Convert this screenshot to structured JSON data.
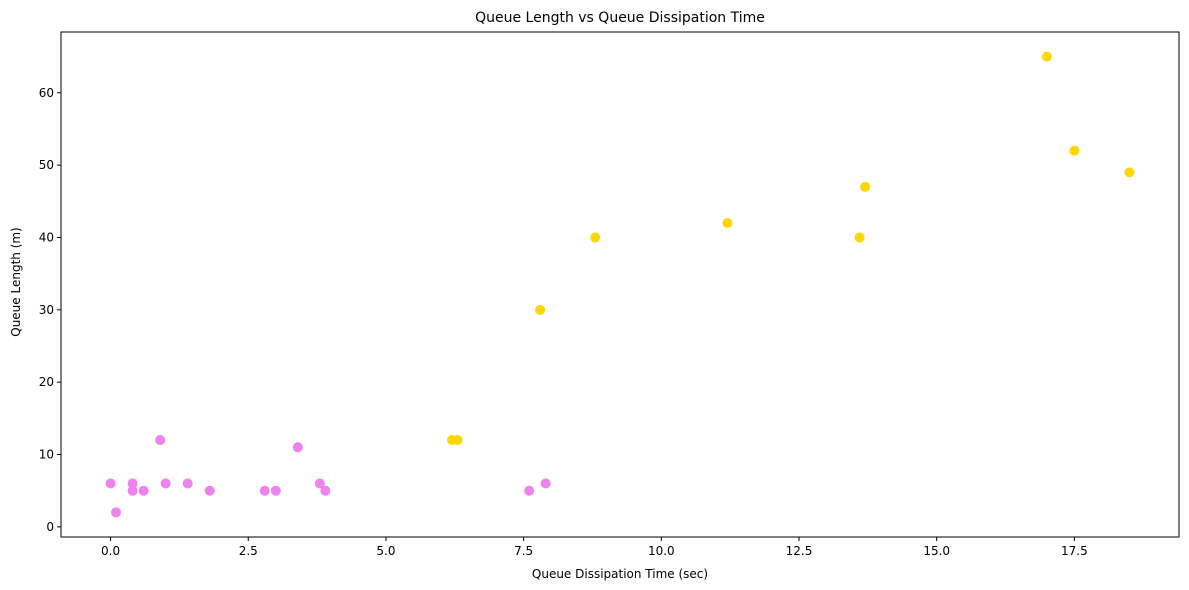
{
  "chart_data": {
    "type": "scatter",
    "title": "Queue Length vs Queue Dissipation Time",
    "xlabel": "Queue Dissipation Time (sec)",
    "ylabel": "Queue Length (m)",
    "xlim": [
      -0.9,
      19.4
    ],
    "ylim": [
      -1.4,
      68.4
    ],
    "xticks": [
      0.0,
      2.5,
      5.0,
      7.5,
      10.0,
      12.5,
      15.0,
      17.5
    ],
    "xtick_labels": [
      "0.0",
      "2.5",
      "5.0",
      "7.5",
      "10.0",
      "12.5",
      "15.0",
      "17.5"
    ],
    "yticks": [
      0,
      10,
      20,
      30,
      40,
      50,
      60
    ],
    "ytick_labels": [
      "0",
      "10",
      "20",
      "30",
      "40",
      "50",
      "60"
    ],
    "grid": false,
    "series": [
      {
        "color": "#ee82ee",
        "points": [
          [
            0.0,
            6
          ],
          [
            0.1,
            2
          ],
          [
            0.4,
            6
          ],
          [
            0.4,
            5
          ],
          [
            0.6,
            5
          ],
          [
            0.9,
            12
          ],
          [
            1.0,
            6
          ],
          [
            1.4,
            6
          ],
          [
            1.8,
            5
          ],
          [
            2.8,
            5
          ],
          [
            3.0,
            5
          ],
          [
            3.4,
            11
          ],
          [
            3.8,
            6
          ],
          [
            3.9,
            5
          ],
          [
            7.6,
            5
          ],
          [
            7.9,
            6
          ]
        ]
      },
      {
        "color": "#ffd700",
        "points": [
          [
            6.2,
            12
          ],
          [
            6.3,
            12
          ],
          [
            7.8,
            30
          ],
          [
            8.8,
            40
          ],
          [
            11.2,
            42
          ],
          [
            13.6,
            40
          ],
          [
            13.7,
            47
          ],
          [
            17.0,
            65
          ],
          [
            17.5,
            52
          ],
          [
            18.5,
            49
          ]
        ]
      }
    ]
  }
}
